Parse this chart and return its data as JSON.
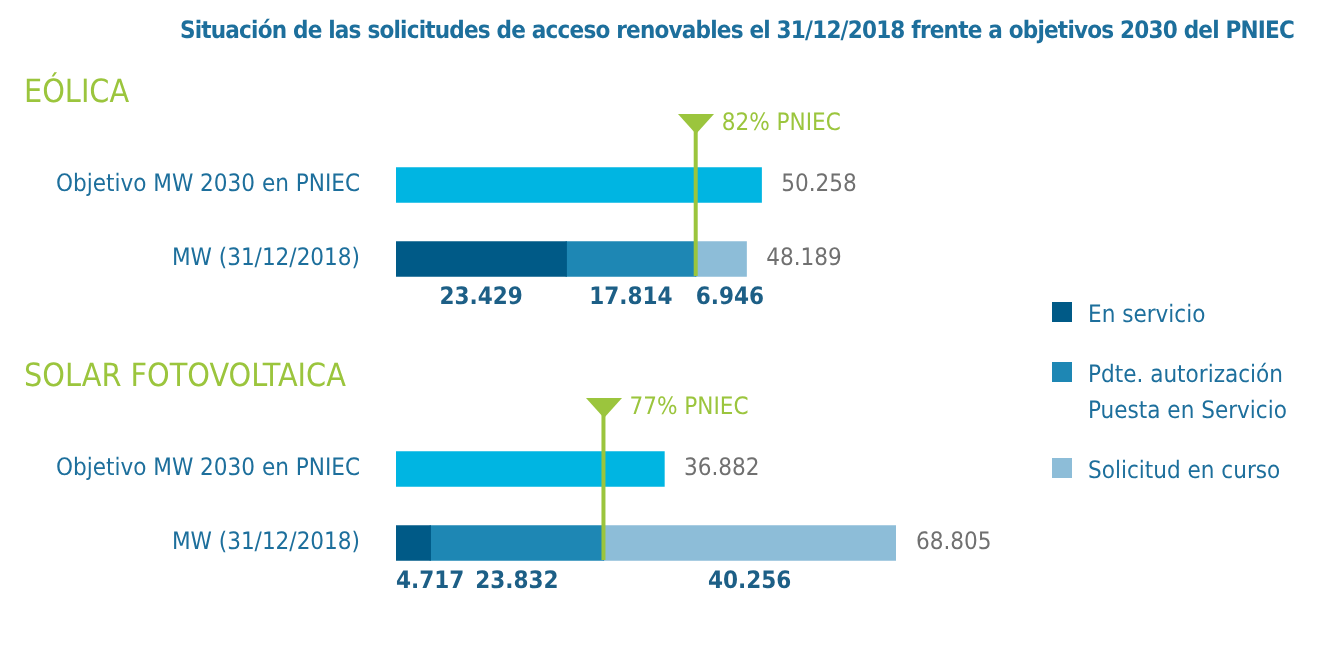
{
  "chart_data": [
    {
      "type": "bar",
      "orientation": "horizontal",
      "stacked": true,
      "title": "Situación de las solicitudes de acceso renovables el 31/12/2018 frente a objetivos 2030 del PNIEC",
      "subtitle": "EÓLICA",
      "categories": [
        "Objetivo MW 2030 en PNIEC",
        "MW (31/12/2018)"
      ],
      "series": [
        {
          "color": "#00b5e2",
          "values": [
            50258,
            null
          ],
          "value_labels": [
            "50.258",
            null
          ]
        },
        {
          "color": "#005a87",
          "values": [
            null,
            23429
          ],
          "value_labels": [
            null,
            "23.429"
          ]
        },
        {
          "color": "#1e87b4",
          "values": [
            null,
            17814
          ],
          "value_labels": [
            null,
            "17.814"
          ]
        },
        {
          "color": "#8dbdd8",
          "values": [
            null,
            6946
          ],
          "value_labels": [
            null,
            "6.946"
          ]
        }
      ],
      "totals": [
        null,
        "48.189"
      ],
      "ref_lines": [
        {
          "axis": "x",
          "value": 41243,
          "label": "82% PNIEC",
          "color": "#9bc53d"
        }
      ]
    },
    {
      "type": "bar",
      "orientation": "horizontal",
      "stacked": true,
      "title": "SOLAR FOTOVOLTAICA",
      "categories": [
        "Objetivo MW 2030 en PNIEC",
        "MW (31/12/2018)"
      ],
      "series": [
        {
          "color": "#00b5e2",
          "values": [
            36882,
            null
          ],
          "value_labels": [
            "36.882",
            null
          ]
        },
        {
          "name": "En servicio",
          "color": "#005a87",
          "values": [
            null,
            4717
          ],
          "value_labels": [
            null,
            "4.717"
          ]
        },
        {
          "name": "Pdte. autorización Puesta en Servicio",
          "color": "#1e87b4",
          "values": [
            null,
            23832
          ],
          "value_labels": [
            null,
            "23.832"
          ]
        },
        {
          "name": "Solicitud en curso",
          "color": "#8dbdd8",
          "values": [
            null,
            40256
          ],
          "value_labels": [
            null,
            "40.256"
          ]
        }
      ],
      "totals": [
        null,
        "68.805"
      ],
      "legend": "right",
      "ref_lines": [
        {
          "axis": "x",
          "value": 28549,
          "label": "77% PNIEC",
          "color": "#9bc53d"
        }
      ]
    }
  ]
}
